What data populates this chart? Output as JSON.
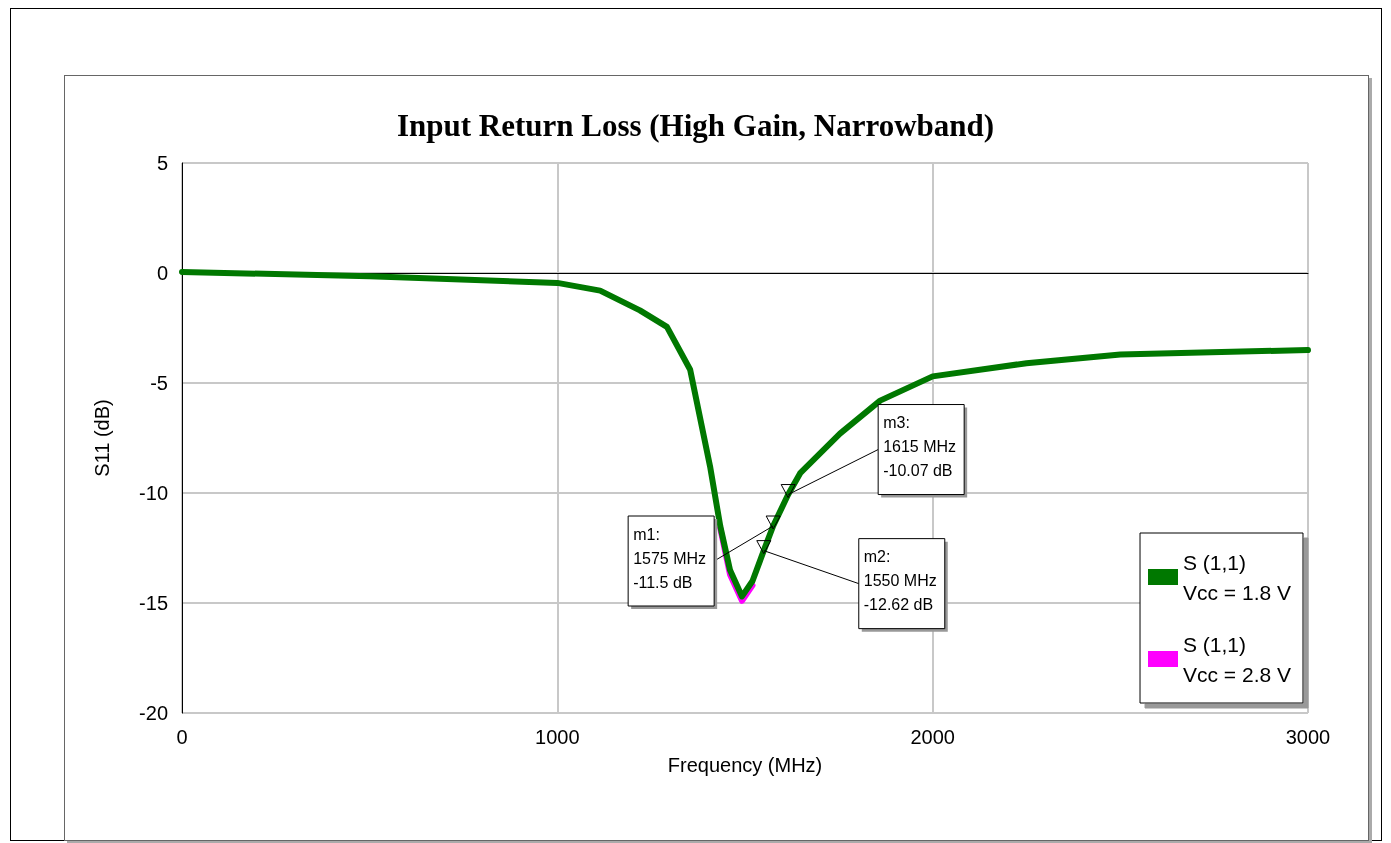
{
  "chart_data": {
    "type": "line",
    "title": "Input Return Loss (High Gain, Narrowband)",
    "xlabel": "Frequency (MHz)",
    "ylabel": "S11 (dB)",
    "x": [
      0,
      500,
      1000,
      1114,
      1220,
      1292,
      1354,
      1407,
      1434,
      1460,
      1492,
      1520,
      1550,
      1575,
      1615,
      1647,
      1753,
      1860,
      2000,
      2250,
      2500,
      3000
    ],
    "series": [
      {
        "name": "S (1,1)\nVcc = 2.8 V",
        "color": "#ff00ff",
        "values": [
          null,
          null,
          null,
          null,
          null,
          null,
          null,
          null,
          -11.6,
          -13.7,
          -14.9,
          -14.2,
          null,
          null,
          null,
          null,
          null,
          null,
          null,
          null,
          null,
          null
        ]
      },
      {
        "name": "S (1,1)\nVcc = 1.8 V",
        "color": "#007800",
        "values": [
          0.05,
          -0.15,
          -0.45,
          -0.8,
          -1.7,
          -2.45,
          -4.4,
          -8.8,
          -11.5,
          -13.5,
          -14.7,
          -14.0,
          -12.62,
          -11.5,
          -10.07,
          -9.1,
          -7.3,
          -5.8,
          -4.7,
          -4.1,
          -3.7,
          -3.5
        ]
      }
    ],
    "xlim": [
      0,
      3000
    ],
    "xticks": [
      0,
      1000,
      2000,
      3000
    ],
    "ylim": [
      -20,
      5
    ],
    "yticks": [
      -20,
      -15,
      -10,
      -5,
      0,
      5
    ],
    "grid": true,
    "legend": "bottom right",
    "line_style": "solid",
    "annotations": [
      {
        "text": "m1:\n1575 MHz\n-11.5 dB",
        "x": 1575,
        "y": -11.5
      },
      {
        "text": "m2:\n1550 MHz\n-12.62 dB",
        "x": 1550,
        "y": -12.62
      },
      {
        "text": "m3:\n1615 MHz\n-10.07 dB",
        "x": 1615,
        "y": -10.07
      }
    ]
  }
}
